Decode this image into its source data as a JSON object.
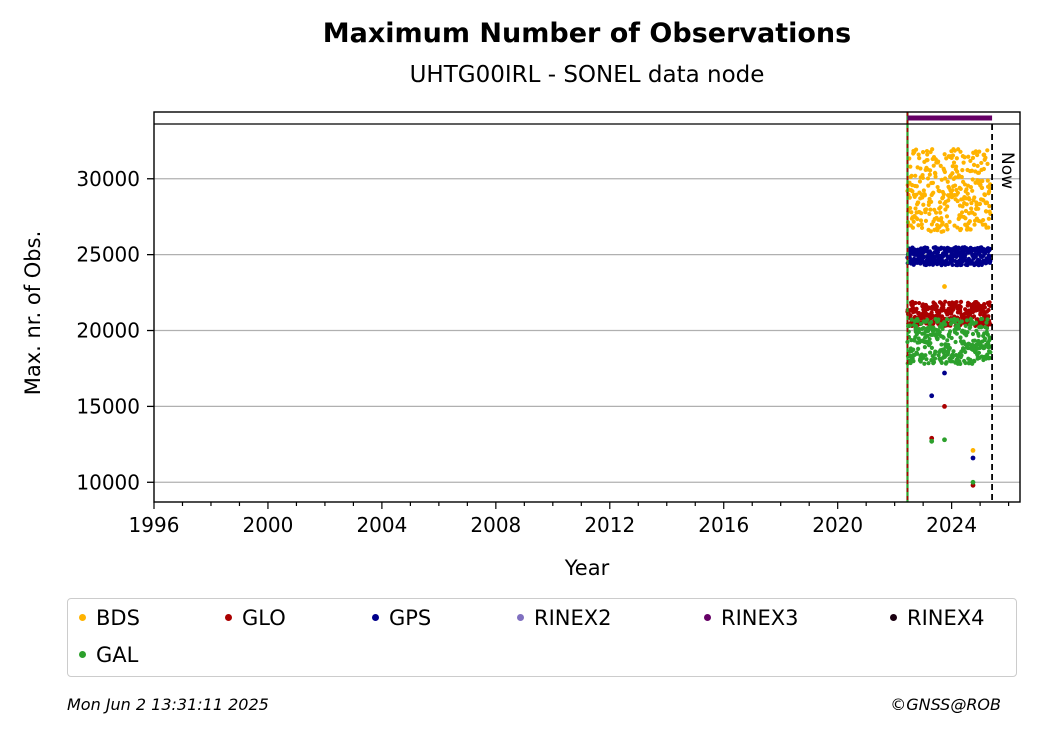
{
  "chart_data": {
    "type": "scatter",
    "title": "Maximum Number of Observations",
    "subtitle": "UHTG00IRL - SONEL data node",
    "xlabel": "Year",
    "ylabel": "Max. nr. of Obs.",
    "xlim": [
      1996,
      2026.4
    ],
    "ylim": [
      8700,
      34400
    ],
    "x_ticks": [
      1996,
      2000,
      2004,
      2008,
      2012,
      2016,
      2020,
      2024
    ],
    "y_ticks": [
      10000,
      15000,
      20000,
      25000,
      30000
    ],
    "grid": "y",
    "now_label": "Now",
    "now_year": 2025.42,
    "start_year": 2022.45,
    "rinex3_span": [
      2022.45,
      2025.42
    ],
    "legend_position": "below",
    "series": [
      {
        "name": "BDS",
        "color": "#ffb300",
        "band": [
          26500,
          32000
        ],
        "outliers": [
          [
            2023.75,
            22900
          ],
          [
            2024.75,
            12100
          ]
        ]
      },
      {
        "name": "GLO",
        "color": "#aa0000",
        "band": [
          20300,
          21900
        ],
        "outliers": [
          [
            2023.3,
            12900
          ],
          [
            2023.75,
            15000
          ],
          [
            2024.75,
            9800
          ]
        ]
      },
      {
        "name": "GPS",
        "color": "#00008b",
        "band": [
          24300,
          25500
        ],
        "outliers": [
          [
            2023.3,
            15700
          ],
          [
            2023.75,
            17200
          ],
          [
            2024.75,
            11600
          ]
        ]
      },
      {
        "name": "RINEX2",
        "color": "#8070c0",
        "band": null,
        "outliers": []
      },
      {
        "name": "RINEX3",
        "color": "#660066",
        "band": null,
        "outliers": []
      },
      {
        "name": "RINEX4",
        "color": "#1a0010",
        "band": null,
        "outliers": []
      },
      {
        "name": "GAL",
        "color": "#2ca02c",
        "band": [
          17800,
          20800
        ],
        "outliers": [
          [
            2023.3,
            12700
          ],
          [
            2023.75,
            12800
          ],
          [
            2024.75,
            10000
          ]
        ]
      }
    ]
  },
  "footer": {
    "timestamp": "Mon Jun  2 13:31:11 2025",
    "credit": "©GNSS@ROB"
  }
}
